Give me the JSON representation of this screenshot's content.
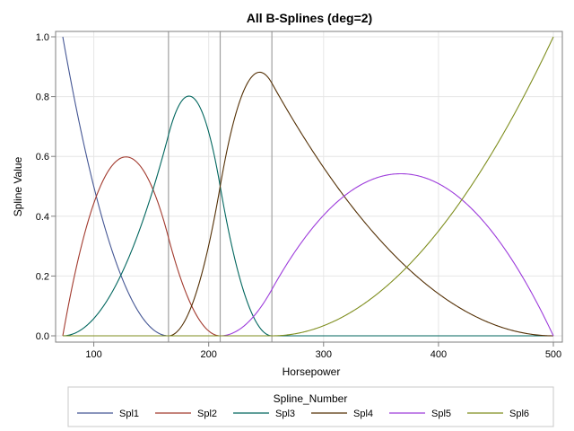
{
  "chart_data": {
    "type": "line",
    "title": "All B-Splines (deg=2)",
    "xlabel": "Horsepower",
    "ylabel": "Spline Value",
    "xlim": [
      73,
      500
    ],
    "ylim": [
      0,
      1
    ],
    "xticks": [
      100,
      200,
      300,
      400,
      500
    ],
    "yticks": [
      0.0,
      0.2,
      0.4,
      0.6,
      0.8,
      1.0
    ],
    "ytick_labels": [
      "0.0",
      "0.2",
      "0.4",
      "0.6",
      "0.8",
      "1.0"
    ],
    "grid": true,
    "reference_lines_x": [
      165,
      210,
      255
    ],
    "degree": 2,
    "knots": [
      73,
      73,
      73,
      165,
      210,
      255,
      500,
      500,
      500
    ],
    "legend": {
      "title": "Spline_Number",
      "position": "bottom"
    },
    "series": [
      {
        "name": "Spl1",
        "color": "#445694"
      },
      {
        "name": "Spl2",
        "color": "#A23A2E"
      },
      {
        "name": "Spl3",
        "color": "#01665E"
      },
      {
        "name": "Spl4",
        "color": "#543005"
      },
      {
        "name": "Spl5",
        "color": "#9D3CDB"
      },
      {
        "name": "Spl6",
        "color": "#7F8E1F"
      }
    ]
  }
}
